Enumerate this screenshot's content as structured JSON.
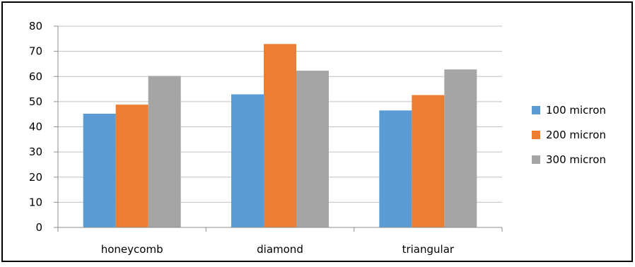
{
  "chart_data": {
    "type": "bar",
    "categories": [
      "honeycomb",
      "diamond",
      "triangular"
    ],
    "series": [
      {
        "name": "100 micron",
        "values": [
          45.2,
          52.9,
          46.5
        ],
        "color": "#5b9bd5"
      },
      {
        "name": "200 micron",
        "values": [
          48.8,
          72.9,
          52.6
        ],
        "color": "#ed7d31"
      },
      {
        "name": "300 micron",
        "values": [
          60.2,
          62.3,
          62.8
        ],
        "color": "#a5a5a5"
      }
    ],
    "ylim": [
      0,
      80
    ],
    "yticks": [
      0,
      10,
      20,
      30,
      40,
      50,
      60,
      70,
      80
    ],
    "grid": true,
    "legend_position": "right",
    "gridline_color": "#c0c0c0",
    "axis_color": "#8c8c8c",
    "border_color": "#000000",
    "text_color": "#000000"
  }
}
